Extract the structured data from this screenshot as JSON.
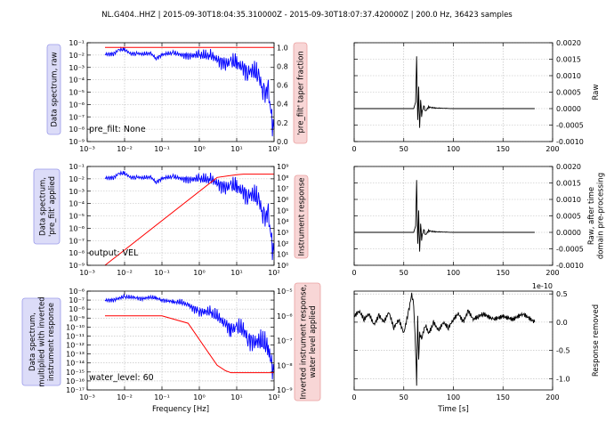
{
  "suptitle": "NL.G404..HHZ | 2015-09-30T18:04:35.310000Z - 2015-09-30T18:07:37.420000Z | 200.0 Hz, 36423 samples",
  "chart_data": [
    {
      "id": "spec1",
      "type": "line",
      "xlabel": "",
      "ylabel": "Data spectrum, raw",
      "ylabel_right": "'pre_filt' taper fraction",
      "xscale": "log",
      "xlim": [
        0.001,
        100
      ],
      "xticks": [
        "10^-3",
        "10^-2",
        "10^-1",
        "10^0",
        "10^1",
        "10^2"
      ],
      "yscale": "log",
      "ylim": [
        1e-09,
        0.1
      ],
      "yticks": [
        "10^-9",
        "10^-8",
        "10^-7",
        "10^-6",
        "10^-5",
        "10^-4",
        "10^-3",
        "10^-2",
        "10^-1"
      ],
      "yright_lim": [
        0,
        1.05
      ],
      "yright_ticks": [
        "0.0",
        "0.2",
        "0.4",
        "0.6",
        "0.8",
        "1.0"
      ],
      "annotation": "pre_filt: None",
      "grid": true,
      "series": [
        {
          "color": "#0000ff",
          "axis": "left",
          "x": [
            0.003,
            0.005,
            0.007,
            0.01,
            0.015,
            0.02,
            0.03,
            0.05,
            0.07,
            0.1,
            0.2,
            0.3,
            0.5,
            1,
            2,
            3,
            5,
            7,
            10,
            15,
            20,
            30,
            40,
            50,
            60,
            70,
            80,
            90,
            100
          ],
          "y": [
            0.012,
            0.014,
            0.025,
            0.025,
            0.013,
            0.016,
            0.011,
            0.013,
            0.006,
            0.011,
            0.013,
            0.011,
            0.011,
            0.008,
            0.007,
            0.005,
            0.003,
            0.0022,
            0.0016,
            0.0014,
            0.0006,
            0.0003,
            0.0001,
            4e-05,
            1.5e-05,
            5e-06,
            1e-06,
            5e-08,
            1e-08
          ]
        },
        {
          "color": "#ff0000",
          "axis": "right",
          "x": [
            0.003,
            100
          ],
          "y": [
            1.0,
            1.0
          ]
        }
      ]
    },
    {
      "id": "raw1",
      "type": "line",
      "xlabel": "",
      "ylabel": "Raw",
      "xlim": [
        0,
        200
      ],
      "xticks": [
        "0",
        "50",
        "100",
        "150",
        "200"
      ],
      "ylim": [
        -0.001,
        0.002
      ],
      "yticks": [
        "-0.0010",
        "-0.0005",
        "0.0000",
        "0.0005",
        "0.0010",
        "0.0015",
        "0.0020"
      ],
      "grid": true,
      "series": [
        {
          "color": "#000000",
          "x": [
            0,
            60,
            62,
            63,
            64,
            65,
            66,
            67,
            68,
            70,
            72,
            75,
            80,
            90,
            100,
            182
          ],
          "y": [
            0,
            0,
            0.0002,
            0.0016,
            -0.0004,
            0.0006,
            -0.0006,
            0.0003,
            -0.0002,
            0.0001,
            -8e-05,
            5e-05,
            2e-05,
            1e-05,
            0,
            0
          ]
        }
      ]
    },
    {
      "id": "spec2",
      "type": "line",
      "xlabel": "",
      "ylabel": "Data spectrum,\n'pre_filt' applied",
      "ylabel_right": "Instrument response",
      "xscale": "log",
      "xlim": [
        0.001,
        100
      ],
      "xticks": [
        "10^-3",
        "10^-2",
        "10^-1",
        "10^0",
        "10^1",
        "10^2"
      ],
      "yscale": "log",
      "ylim": [
        1e-09,
        0.1
      ],
      "yticks": [
        "10^-9",
        "10^-8",
        "10^-7",
        "10^-6",
        "10^-5",
        "10^-4",
        "10^-3",
        "10^-2",
        "10^-1"
      ],
      "yright_lim": [
        1,
        1000000000.0
      ],
      "yright_ticks": [
        "10^0",
        "10^1",
        "10^2",
        "10^3",
        "10^4",
        "10^5",
        "10^6",
        "10^7",
        "10^8",
        "10^9"
      ],
      "annotation": "output: VEL",
      "grid": true,
      "series": [
        {
          "color": "#0000ff",
          "axis": "left",
          "x": [
            0.003,
            0.005,
            0.007,
            0.01,
            0.015,
            0.02,
            0.03,
            0.05,
            0.07,
            0.1,
            0.2,
            0.3,
            0.5,
            1,
            2,
            3,
            5,
            7,
            10,
            15,
            20,
            30,
            40,
            50,
            60,
            70,
            80,
            90,
            100
          ],
          "y": [
            0.012,
            0.014,
            0.025,
            0.025,
            0.013,
            0.016,
            0.011,
            0.013,
            0.006,
            0.011,
            0.013,
            0.011,
            0.011,
            0.008,
            0.007,
            0.005,
            0.003,
            0.0022,
            0.0016,
            0.0014,
            0.0006,
            0.0003,
            0.0001,
            4e-05,
            1.5e-05,
            5e-06,
            1e-06,
            5e-08,
            1e-08
          ]
        },
        {
          "color": "#ff0000",
          "axis": "right",
          "x": [
            0.003,
            3,
            10,
            15,
            100
          ],
          "y": [
            1,
            100000000,
            180000000,
            200000000,
            200000000
          ]
        }
      ]
    },
    {
      "id": "raw2",
      "type": "line",
      "xlabel": "",
      "ylabel": "Raw, after time\ndomain pre-processing",
      "xlim": [
        0,
        200
      ],
      "xticks": [
        "0",
        "50",
        "100",
        "150",
        "200"
      ],
      "ylim": [
        -0.001,
        0.002
      ],
      "yticks": [
        "-0.0010",
        "-0.0005",
        "0.0000",
        "0.0005",
        "0.0010",
        "0.0015",
        "0.0020"
      ],
      "grid": true,
      "series": [
        {
          "color": "#000000",
          "x": [
            0,
            60,
            62,
            63,
            64,
            65,
            66,
            67,
            68,
            70,
            72,
            75,
            80,
            90,
            100,
            182
          ],
          "y": [
            0,
            0,
            0.0002,
            0.0016,
            -0.0004,
            0.0006,
            -0.0006,
            0.0003,
            -0.0002,
            0.0001,
            -8e-05,
            5e-05,
            2e-05,
            1e-05,
            0,
            0
          ]
        }
      ]
    },
    {
      "id": "spec3",
      "type": "line",
      "xlabel": "Frequency [Hz]",
      "ylabel": "Data spectrum,\nmultiplied with inverted\ninstrument response",
      "ylabel_right": "Inverted instrument response,\nwater level applied",
      "xscale": "log",
      "xlim": [
        0.001,
        100
      ],
      "xticks": [
        "10^-3",
        "10^-2",
        "10^-1",
        "10^0",
        "10^1",
        "10^2"
      ],
      "yscale": "log",
      "ylim": [
        1e-17,
        1e-06
      ],
      "yticks": [
        "10^-17",
        "10^-16",
        "10^-15",
        "10^-14",
        "10^-13",
        "10^-12",
        "10^-11",
        "10^-10",
        "10^-9",
        "10^-8",
        "10^-7",
        "10^-6"
      ],
      "yright_lim": [
        1e-09,
        1e-05
      ],
      "yright_ticks": [
        "10^-9",
        "10^-8",
        "10^-7",
        "10^-6",
        "10^-5"
      ],
      "annotation": "water_level: 60",
      "grid": true,
      "series": [
        {
          "color": "#0000ff",
          "axis": "left",
          "x": [
            0.003,
            0.005,
            0.01,
            0.015,
            0.02,
            0.03,
            0.05,
            0.07,
            0.1,
            0.2,
            0.3,
            0.5,
            1,
            2,
            3,
            5,
            7,
            10,
            15,
            20,
            30,
            50,
            70,
            90,
            100
          ],
          "y": [
            1e-07,
            1.2e-07,
            2e-07,
            1.8e-07,
            2e-07,
            1.6e-07,
            1.8e-07,
            1.5e-07,
            1.2e-07,
            6e-08,
            5e-08,
            3e-08,
            8e-09,
            3e-09,
            1e-09,
            3e-10,
            1e-10,
            6e-11,
            3e-11,
            1e-11,
            3e-12,
            1e-12,
            3e-13,
            1e-14,
            1e-15
          ]
        },
        {
          "color": "#ff0000",
          "axis": "right",
          "x": [
            0.003,
            0.1,
            0.5,
            3,
            5,
            7,
            10,
            15,
            100
          ],
          "y": [
            1e-06,
            1e-06,
            5e-07,
            1e-08,
            6e-09,
            5e-09,
            5e-09,
            5e-09,
            5e-09
          ]
        }
      ]
    },
    {
      "id": "resp",
      "type": "line",
      "xlabel": "Time [s]",
      "ylabel": "Response removed",
      "offset_label": "1e-10",
      "xlim": [
        0,
        200
      ],
      "xticks": [
        "0",
        "50",
        "100",
        "150",
        "200"
      ],
      "ylim": [
        -1.2,
        0.55
      ],
      "yticks": [
        "-1.0",
        "-0.5",
        "0.0",
        "0.5"
      ],
      "grid": true,
      "series": [
        {
          "color": "#000000",
          "x": [
            0,
            5,
            10,
            15,
            20,
            25,
            30,
            35,
            40,
            45,
            50,
            55,
            58,
            60,
            62,
            63,
            64,
            65,
            66,
            68,
            70,
            72,
            75,
            78,
            80,
            85,
            90,
            95,
            100,
            105,
            110,
            115,
            120,
            125,
            130,
            140,
            150,
            160,
            170,
            182
          ],
          "y": [
            0.1,
            0.2,
            0.05,
            0.15,
            -0.05,
            0.12,
            0.0,
            0.18,
            -0.1,
            0.05,
            -0.2,
            0.2,
            0.5,
            0.3,
            -0.5,
            -1.1,
            0.1,
            -0.7,
            -0.2,
            -0.3,
            -0.15,
            -0.05,
            -0.2,
            -0.1,
            0.0,
            -0.15,
            0.0,
            -0.1,
            0.05,
            0.15,
            0.0,
            0.2,
            0.05,
            0.1,
            0.15,
            0.05,
            0.1,
            0.05,
            0.15,
            0.0
          ]
        }
      ]
    }
  ]
}
